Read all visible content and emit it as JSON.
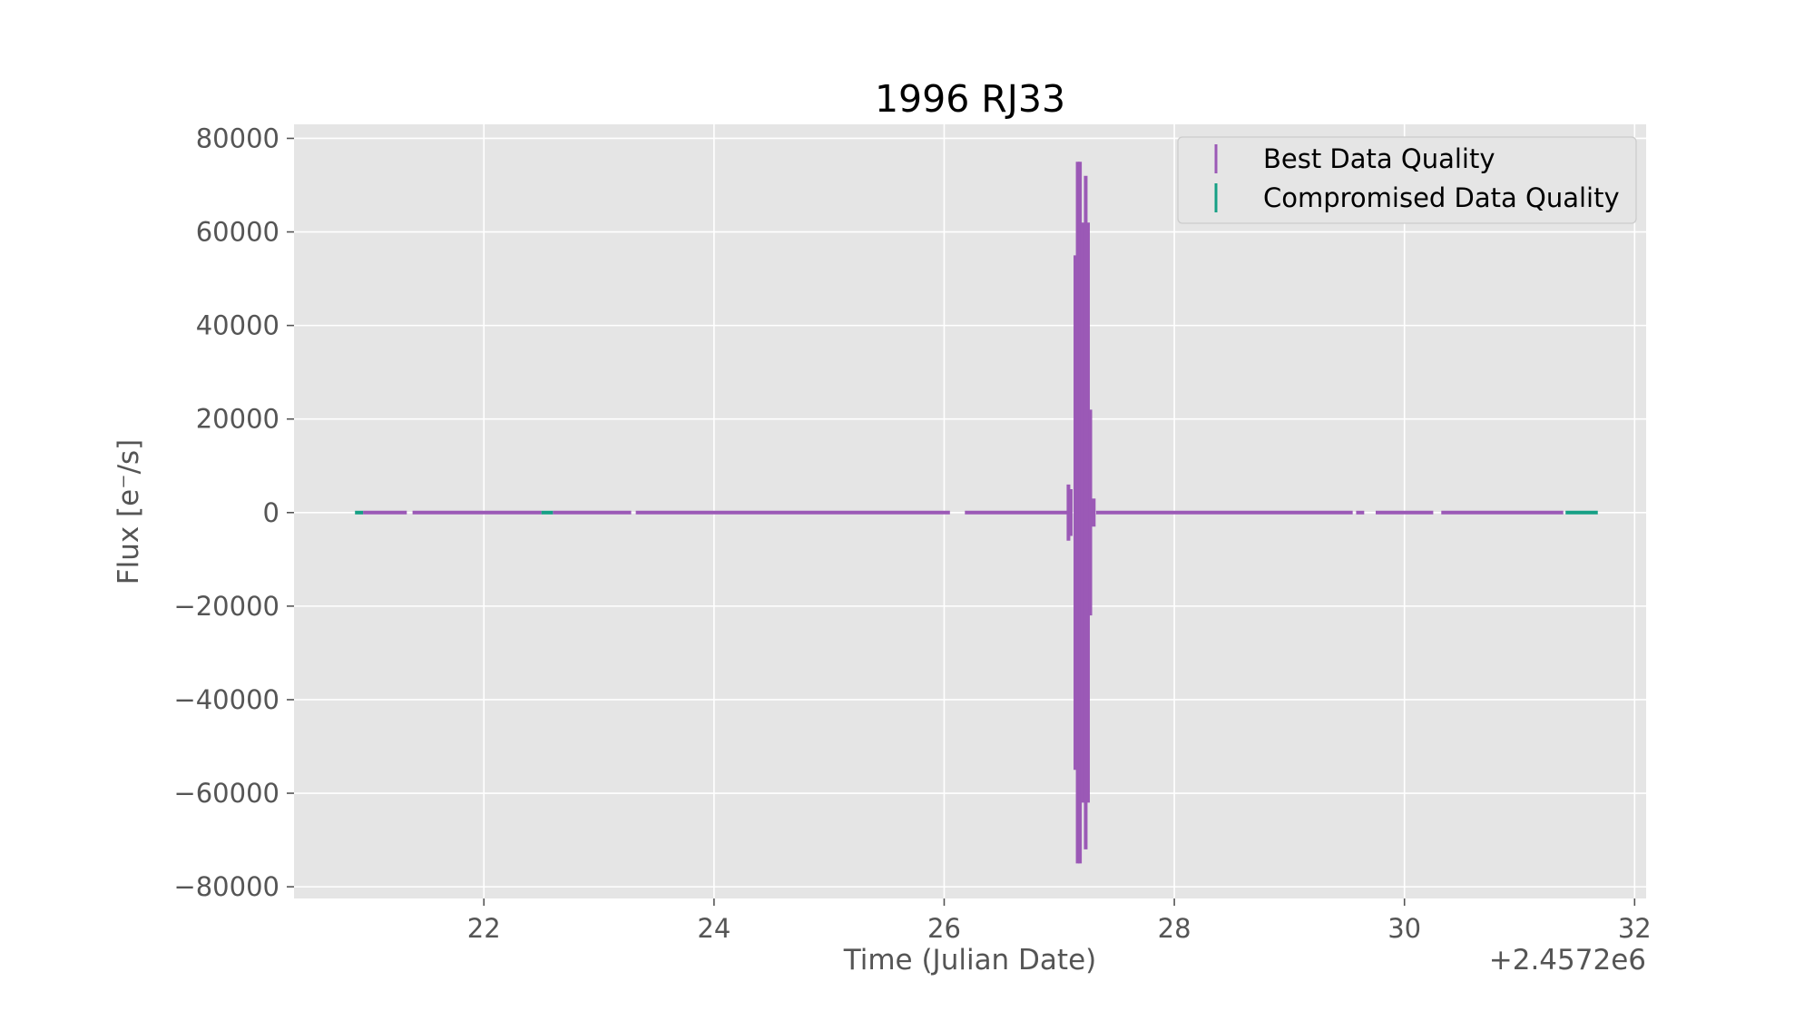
{
  "chart_data": {
    "type": "errorbar-scatter",
    "title": "1996 RJ33",
    "xlabel": "Time (Julian Date)",
    "ylabel": "Flux [e⁻/s]",
    "x_offset_label": "+2.4572e6",
    "xlim": [
      20.35,
      32.1
    ],
    "ylim": [
      -82500,
      83000
    ],
    "x_ticks": [
      22,
      24,
      26,
      28,
      30,
      32
    ],
    "x_tick_labels": [
      "22",
      "24",
      "26",
      "28",
      "30",
      "32"
    ],
    "y_ticks": [
      80000,
      60000,
      40000,
      20000,
      0,
      -20000,
      -40000,
      -60000,
      -80000
    ],
    "y_tick_labels": [
      "80000",
      "60000",
      "40000",
      "20000",
      "0",
      "−20000",
      "−40000",
      "−60000",
      "−80000"
    ],
    "grid": true,
    "legend_position": "top-right",
    "colors": {
      "plot_bg": "#e5e5e5",
      "grid": "#ffffff",
      "best": "#9b59b6",
      "compromised": "#16a085"
    },
    "series": [
      {
        "name": "Best Data Quality",
        "color": "#9b59b6",
        "segments": [
          [
            20.95,
            21.33
          ],
          [
            21.38,
            22.5
          ],
          [
            22.6,
            23.28
          ],
          [
            23.32,
            26.05
          ],
          [
            26.18,
            27.08
          ],
          [
            27.32,
            29.55
          ],
          [
            29.58,
            29.65
          ],
          [
            29.75,
            30.25
          ],
          [
            30.32,
            31.38
          ]
        ],
        "points": [
          {
            "x": 27.08,
            "y": 0,
            "err": 6000
          },
          {
            "x": 27.1,
            "y": 0,
            "err": 5000
          },
          {
            "x": 27.14,
            "y": 0,
            "err": 55000
          },
          {
            "x": 27.16,
            "y": 0,
            "err": 75000
          },
          {
            "x": 27.18,
            "y": 0,
            "err": 75000
          },
          {
            "x": 27.2,
            "y": 0,
            "err": 62000
          },
          {
            "x": 27.23,
            "y": 0,
            "err": 72000
          },
          {
            "x": 27.25,
            "y": 0,
            "err": 62000
          },
          {
            "x": 27.27,
            "y": 0,
            "err": 22000
          },
          {
            "x": 27.3,
            "y": 0,
            "err": 3000
          }
        ]
      },
      {
        "name": "Compromised Data Quality",
        "color": "#16a085",
        "segments": [
          [
            20.88,
            20.95
          ],
          [
            22.5,
            22.6
          ],
          [
            31.4,
            31.68
          ]
        ],
        "points": []
      }
    ]
  }
}
